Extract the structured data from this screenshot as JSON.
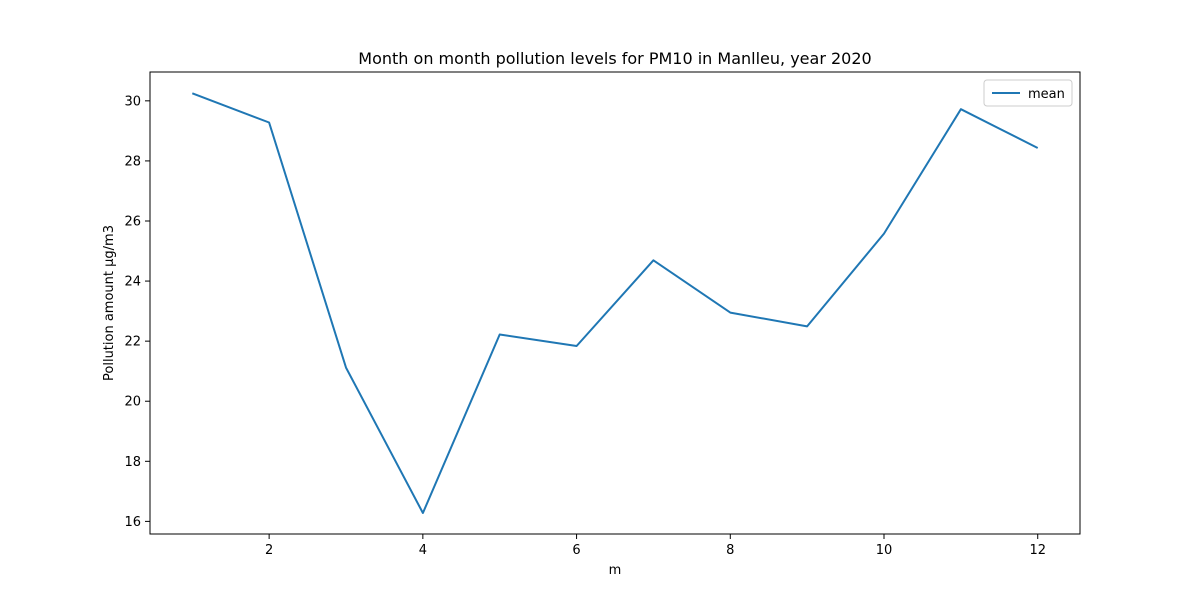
{
  "chart_data": {
    "type": "line",
    "title": "Month on month pollution levels for PM10 in Manlleu, year 2020",
    "xlabel": "m",
    "ylabel": "Pollution amount µg/m3",
    "x": [
      1,
      2,
      3,
      4,
      5,
      6,
      7,
      8,
      9,
      10,
      11,
      12
    ],
    "series": [
      {
        "name": "mean",
        "color": "#1f77b4",
        "values": [
          30.25,
          29.28,
          21.12,
          16.28,
          22.22,
          21.84,
          24.69,
          22.95,
          22.49,
          25.58,
          29.72,
          28.43
        ]
      }
    ],
    "xlim": [
      0.45,
      12.55
    ],
    "ylim": [
      15.58,
      30.96
    ],
    "xticks": [
      2,
      4,
      6,
      8,
      10,
      12
    ],
    "yticks": [
      16,
      18,
      20,
      22,
      24,
      26,
      28,
      30
    ],
    "grid": false,
    "legend": "top-right"
  }
}
